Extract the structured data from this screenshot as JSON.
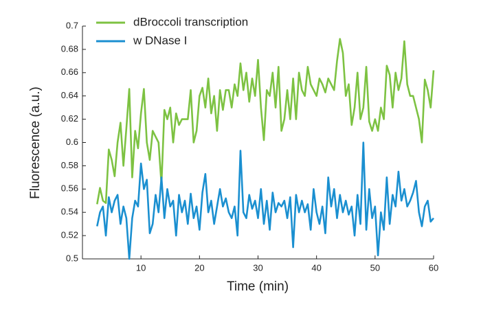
{
  "chart_data": {
    "type": "line",
    "xlabel": "Time (min)",
    "ylabel": "Fluorescence (a.u.)",
    "xlim": [
      0,
      60
    ],
    "ylim": [
      0.5,
      0.7
    ],
    "xticks": [
      10,
      20,
      30,
      40,
      50,
      60
    ],
    "yticks": [
      0.5,
      0.52,
      0.54,
      0.56,
      0.58,
      0.6,
      0.62,
      0.64,
      0.66,
      0.68,
      0.7
    ],
    "legend": "upper left",
    "x": [
      2.5,
      3,
      3.5,
      4,
      4.5,
      5,
      5.5,
      6,
      6.5,
      7,
      7.5,
      8,
      8.5,
      9,
      9.5,
      10,
      10.5,
      11,
      11.5,
      12,
      12.5,
      13,
      13.5,
      14,
      14.5,
      15,
      15.5,
      16,
      16.5,
      17,
      17.5,
      18,
      18.5,
      19,
      19.5,
      20,
      20.5,
      21,
      21.5,
      22,
      22.5,
      23,
      23.5,
      24,
      24.5,
      25,
      25.5,
      26,
      26.5,
      27,
      27.5,
      28,
      28.5,
      29,
      29.5,
      30,
      30.5,
      31,
      31.5,
      32,
      32.5,
      33,
      33.5,
      34,
      34.5,
      35,
      35.5,
      36,
      36.5,
      37,
      37.5,
      38,
      38.5,
      39,
      39.5,
      40,
      40.5,
      41,
      41.5,
      42,
      42.5,
      43,
      43.5,
      44,
      44.5,
      45,
      45.5,
      46,
      46.5,
      47,
      47.5,
      48,
      48.5,
      49,
      49.5,
      50,
      50.5,
      51,
      51.5,
      52,
      52.5,
      53,
      53.5,
      54,
      54.5,
      55,
      55.5,
      56,
      56.5,
      57,
      57.5,
      58,
      58.5,
      59,
      59.5,
      60
    ],
    "series": [
      {
        "name": "dBroccoli transcription",
        "color": "#7dc242",
        "values": [
          0.547,
          0.561,
          0.55,
          0.548,
          0.594,
          0.585,
          0.571,
          0.6,
          0.617,
          0.58,
          0.612,
          0.646,
          0.57,
          0.61,
          0.595,
          0.625,
          0.646,
          0.6,
          0.585,
          0.61,
          0.605,
          0.6,
          0.564,
          0.628,
          0.62,
          0.63,
          0.6,
          0.625,
          0.615,
          0.62,
          0.62,
          0.62,
          0.645,
          0.6,
          0.61,
          0.64,
          0.647,
          0.63,
          0.655,
          0.625,
          0.64,
          0.61,
          0.645,
          0.628,
          0.645,
          0.645,
          0.63,
          0.65,
          0.64,
          0.668,
          0.645,
          0.66,
          0.635,
          0.655,
          0.64,
          0.671,
          0.63,
          0.602,
          0.645,
          0.64,
          0.66,
          0.63,
          0.665,
          0.61,
          0.62,
          0.645,
          0.62,
          0.655,
          0.62,
          0.66,
          0.645,
          0.64,
          0.665,
          0.65,
          0.645,
          0.64,
          0.655,
          0.65,
          0.643,
          0.655,
          0.65,
          0.645,
          0.67,
          0.689,
          0.677,
          0.64,
          0.65,
          0.615,
          0.63,
          0.66,
          0.62,
          0.63,
          0.665,
          0.618,
          0.61,
          0.62,
          0.61,
          0.63,
          0.62,
          0.666,
          0.658,
          0.63,
          0.66,
          0.645,
          0.655,
          0.687,
          0.65,
          0.64,
          0.64,
          0.63,
          0.62,
          0.6,
          0.654,
          0.645,
          0.63,
          0.662
        ]
      },
      {
        "name": "w DNase I",
        "color": "#1a8fd0",
        "values": [
          0.528,
          0.54,
          0.545,
          0.52,
          0.553,
          0.54,
          0.55,
          0.555,
          0.53,
          0.545,
          0.535,
          0.5,
          0.535,
          0.55,
          0.545,
          0.582,
          0.56,
          0.568,
          0.522,
          0.53,
          0.555,
          0.54,
          0.57,
          0.535,
          0.56,
          0.545,
          0.55,
          0.52,
          0.555,
          0.54,
          0.55,
          0.53,
          0.556,
          0.535,
          0.545,
          0.525,
          0.557,
          0.573,
          0.54,
          0.55,
          0.53,
          0.545,
          0.56,
          0.545,
          0.552,
          0.54,
          0.535,
          0.545,
          0.52,
          0.593,
          0.54,
          0.535,
          0.555,
          0.543,
          0.55,
          0.535,
          0.56,
          0.53,
          0.55,
          0.525,
          0.557,
          0.54,
          0.548,
          0.545,
          0.55,
          0.535,
          0.553,
          0.51,
          0.555,
          0.54,
          0.55,
          0.54,
          0.547,
          0.525,
          0.56,
          0.54,
          0.53,
          0.545,
          0.522,
          0.57,
          0.545,
          0.56,
          0.535,
          0.555,
          0.54,
          0.55,
          0.538,
          0.545,
          0.52,
          0.555,
          0.53,
          0.6,
          0.525,
          0.56,
          0.535,
          0.545,
          0.503,
          0.54,
          0.525,
          0.57,
          0.53,
          0.555,
          0.545,
          0.575,
          0.55,
          0.56,
          0.545,
          0.55,
          0.557,
          0.567,
          0.54,
          0.528,
          0.545,
          0.55,
          0.532,
          0.535
        ]
      }
    ]
  }
}
